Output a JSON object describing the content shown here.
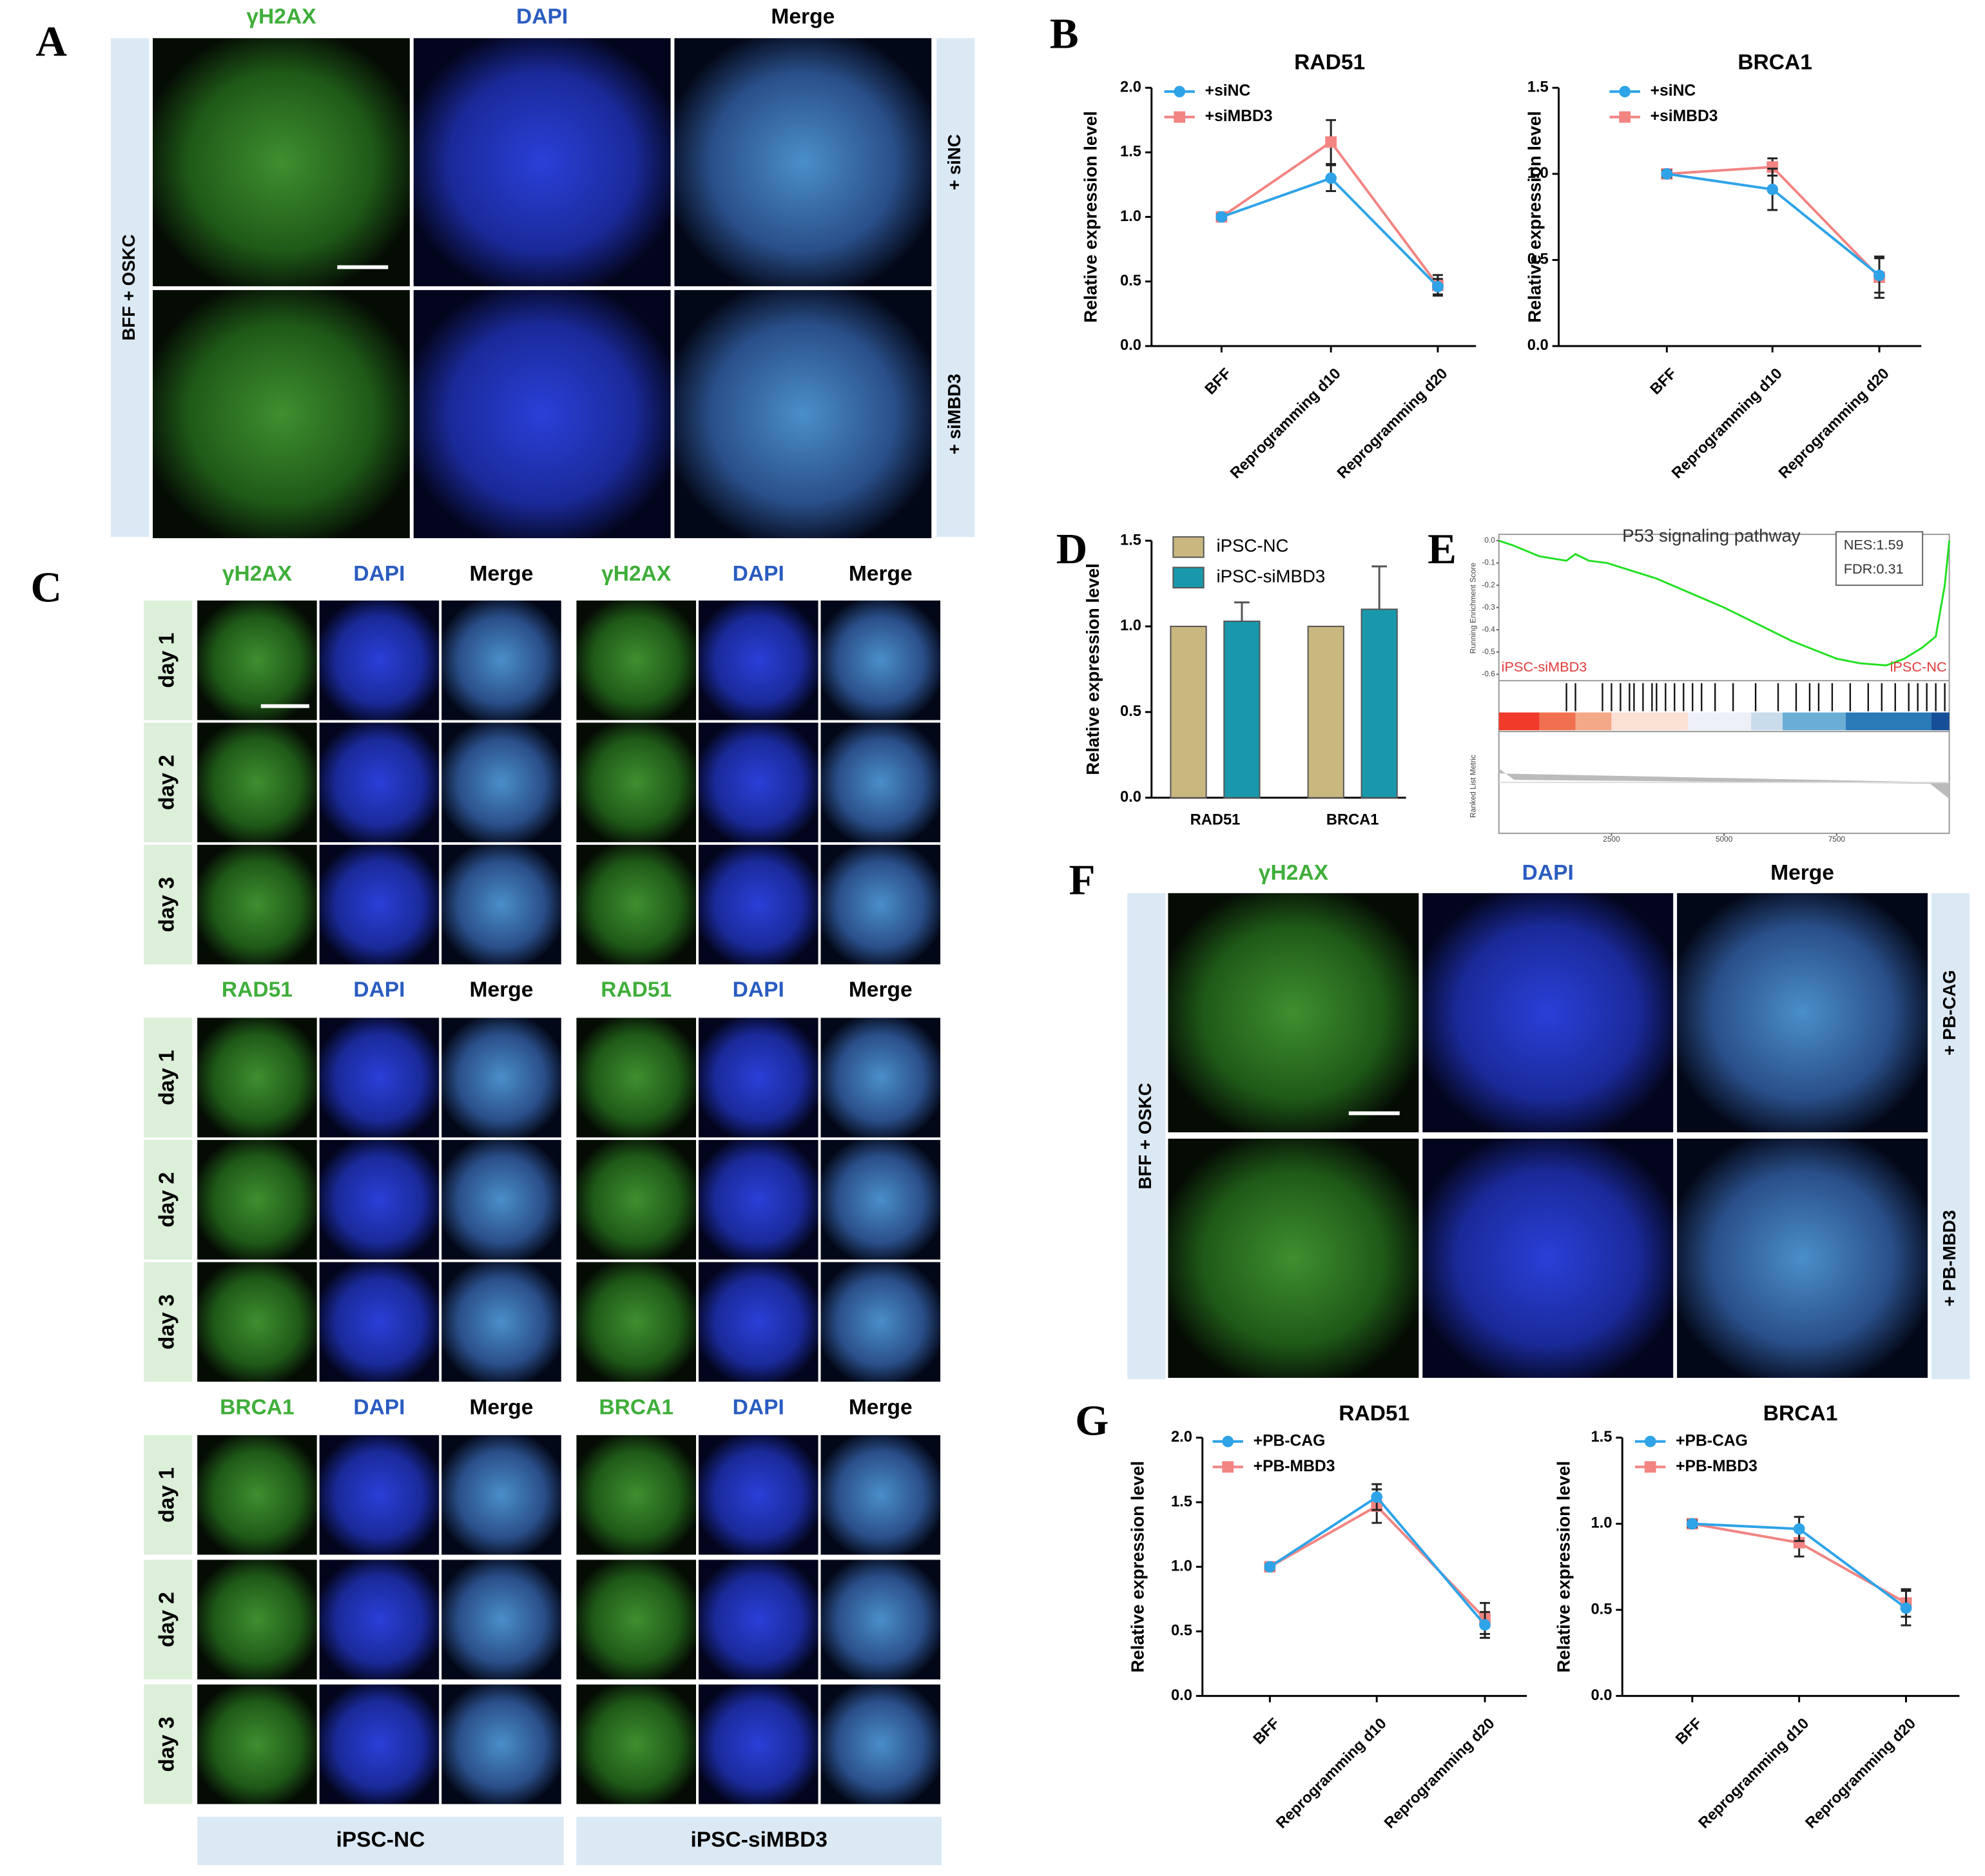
{
  "panel_labels": [
    "A",
    "B",
    "C",
    "D",
    "E",
    "F",
    "G"
  ],
  "panel_a": {
    "side_label": "BFF + OSKC",
    "columns": [
      "γH2AX",
      "DAPI",
      "Merge"
    ],
    "rows": [
      "+ siNC",
      "+ siMBD3"
    ]
  },
  "panel_c": {
    "groups": [
      {
        "headers": [
          "γH2AX",
          "DAPI",
          "Merge",
          "γH2AX",
          "DAPI",
          "Merge"
        ],
        "rows": [
          "day 1",
          "day 2",
          "day 3"
        ]
      },
      {
        "headers": [
          "RAD51",
          "DAPI",
          "Merge",
          "RAD51",
          "DAPI",
          "Merge"
        ],
        "rows": [
          "day 1",
          "day 2",
          "day 3"
        ]
      },
      {
        "headers": [
          "BRCA1",
          "DAPI",
          "Merge",
          "BRCA1",
          "DAPI",
          "Merge"
        ],
        "rows": [
          "day 1",
          "day 2",
          "day 3"
        ]
      }
    ],
    "footers": [
      "iPSC-NC",
      "iPSC-siMBD3"
    ]
  },
  "panel_f": {
    "side_label": "BFF + OSKC",
    "columns": [
      "γH2AX",
      "DAPI",
      "Merge"
    ],
    "rows": [
      "+ PB-CAG",
      "+ PB-MBD3"
    ]
  },
  "chart_data": [
    {
      "type": "line",
      "title": "RAD51",
      "ylabel": "Relative expression level",
      "categories": [
        "BFF",
        "Reprogramming d10",
        "Reprogramming d20"
      ],
      "series": [
        {
          "name": "+siNC",
          "color": "#2ea3e8",
          "values": [
            1.0,
            1.3,
            0.46
          ],
          "errors": [
            0.02,
            0.1,
            0.06
          ]
        },
        {
          "name": "+siMBD3",
          "color": "#f28482",
          "values": [
            1.0,
            1.58,
            0.47
          ],
          "errors": [
            0.02,
            0.17,
            0.08
          ]
        }
      ],
      "ylim": [
        0,
        2
      ],
      "yticks": [
        {
          "value": 0,
          "label": "0.0"
        },
        0.5,
        {
          "value": 1,
          "label": "1.0"
        },
        1.5,
        {
          "value": 2,
          "label": "2.0"
        }
      ]
    },
    {
      "type": "line",
      "title": "BRCA1",
      "ylabel": "Relative expression level",
      "categories": [
        "BFF",
        "Reprogramming d10",
        "Reprogramming d20"
      ],
      "series": [
        {
          "name": "+siNC",
          "color": "#2ea3e8",
          "values": [
            1.0,
            0.91,
            0.41
          ],
          "errors": [
            0.02,
            0.12,
            0.1
          ]
        },
        {
          "name": "+siMBD3",
          "color": "#f28482",
          "values": [
            1.0,
            1.04,
            0.4
          ],
          "errors": [
            0.02,
            0.05,
            0.12
          ]
        }
      ],
      "ylim": [
        0,
        1.5
      ],
      "yticks": [
        {
          "value": 0,
          "label": "0.0"
        },
        0.5,
        {
          "value": 1,
          "label": "1.0"
        },
        1.5
      ]
    },
    {
      "type": "bar",
      "ylabel": "Relative expression level",
      "categories": [
        "RAD51",
        "BRCA1"
      ],
      "series": [
        {
          "name": "iPSC-NC",
          "color": "#c9b780",
          "values": [
            1.0,
            1.0
          ],
          "errors": [
            0,
            0
          ]
        },
        {
          "name": "iPSC-siMBD3",
          "color": "#1a98ab",
          "values": [
            1.03,
            1.1
          ],
          "errors": [
            0.11,
            0.25
          ]
        }
      ],
      "ylim": [
        0,
        1.5
      ],
      "yticks": [
        {
          "value": 0,
          "label": "0.0"
        },
        0.5,
        {
          "value": 1,
          "label": "1.0"
        },
        1.5
      ]
    },
    {
      "type": "gsea",
      "title": "P53 signaling pathway",
      "nes_label": "NES:1.59",
      "fdr_label": "FDR:0.31",
      "left_label": "iPSC-siMBD3",
      "right_label": "iPSC-NC",
      "ylabel": "Running Enrichment Score",
      "lower_ylabel": "Ranked List Metric",
      "x": [
        0,
        300,
        900,
        1500,
        1700,
        2000,
        2400,
        3500,
        5000,
        6500,
        7500,
        8000,
        8600,
        9000,
        9400,
        9700,
        9900,
        10000
      ],
      "values": [
        0.0,
        -0.02,
        -0.07,
        -0.09,
        -0.06,
        -0.09,
        -0.1,
        -0.17,
        -0.3,
        -0.45,
        -0.53,
        -0.55,
        -0.56,
        -0.53,
        -0.48,
        -0.43,
        -0.2,
        0.0
      ],
      "color": "#22e022",
      "hits": [
        1500,
        1700,
        2300,
        2500,
        2700,
        2900,
        3000,
        3200,
        3400,
        3500,
        3700,
        3900,
        4100,
        4300,
        4500,
        4800,
        5200,
        5700,
        6200,
        6600,
        6900,
        7100,
        7400,
        7800,
        8200,
        8500,
        8800,
        9100,
        9300,
        9500,
        9700,
        9900
      ],
      "xlim": [
        0,
        10000
      ],
      "xticks": [
        2500,
        5000,
        7500
      ],
      "ylim": [
        -0.6,
        0.0
      ],
      "yticks": [
        {
          "value": 0,
          "label": "0.0"
        },
        -0.1,
        -0.2,
        -0.3,
        -0.4,
        -0.5,
        -0.6
      ]
    },
    {
      "type": "line",
      "title": "RAD51",
      "ylabel": "Relative expression level",
      "categories": [
        "BFF",
        "Reprogramming d10",
        "Reprogramming d20"
      ],
      "series": [
        {
          "name": "+PB-CAG",
          "color": "#2ea3e8",
          "values": [
            1.0,
            1.54,
            0.55
          ],
          "errors": [
            0.02,
            0.1,
            0.1
          ]
        },
        {
          "name": "+PB-MBD3",
          "color": "#f28482",
          "values": [
            1.0,
            1.47,
            0.6
          ],
          "errors": [
            0.02,
            0.13,
            0.12
          ]
        }
      ],
      "ylim": [
        0,
        2
      ],
      "yticks": [
        {
          "value": 0,
          "label": "0.0"
        },
        0.5,
        {
          "value": 1,
          "label": "1.0"
        },
        1.5,
        {
          "value": 2,
          "label": "2.0"
        }
      ]
    },
    {
      "type": "line",
      "title": "BRCA1",
      "ylabel": "Relative expression level",
      "categories": [
        "BFF",
        "Reprogramming d10",
        "Reprogramming d20"
      ],
      "series": [
        {
          "name": "+PB-CAG",
          "color": "#2ea3e8",
          "values": [
            1.0,
            0.97,
            0.51
          ],
          "errors": [
            0.02,
            0.07,
            0.1
          ]
        },
        {
          "name": "+PB-MBD3",
          "color": "#f28482",
          "values": [
            1.0,
            0.89,
            0.54
          ],
          "errors": [
            0.02,
            0.08,
            0.08
          ]
        }
      ],
      "ylim": [
        0,
        1.5
      ],
      "yticks": [
        {
          "value": 0,
          "label": "0.0"
        },
        0.5,
        {
          "value": 1,
          "label": "1.0"
        },
        1.5
      ]
    }
  ]
}
